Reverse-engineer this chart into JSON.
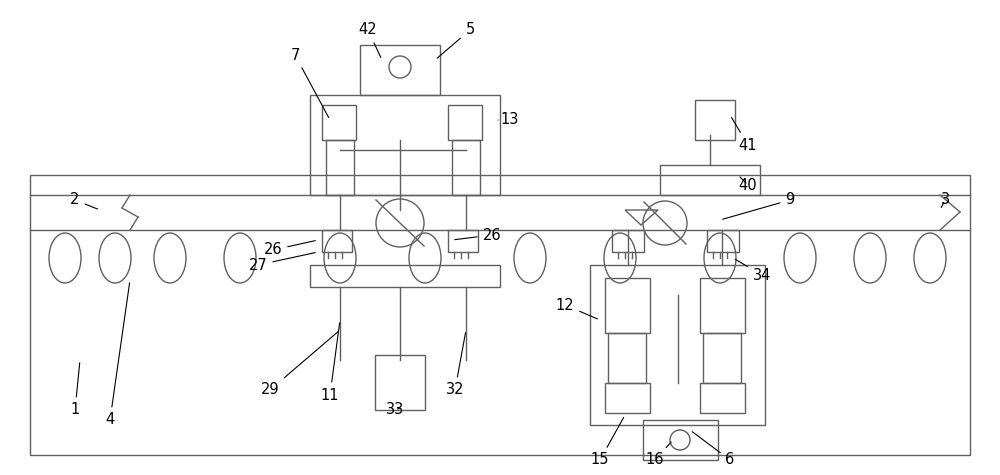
{
  "bg": "#ffffff",
  "lc": "#606060",
  "lw": 1.0,
  "fs": 10.5,
  "fig_w": 10.0,
  "fig_h": 4.75,
  "dpi": 100
}
